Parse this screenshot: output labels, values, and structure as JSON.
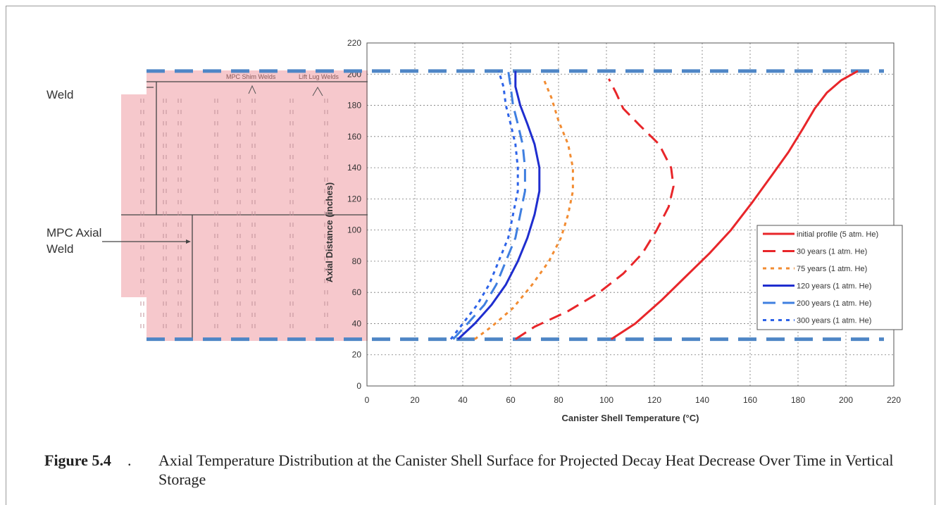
{
  "figure": {
    "number": "Figure 5.4",
    "period": ".",
    "caption": "Axial Temperature Distribution at the Canister Shell Surface for Projected Decay Heat Decrease Over Time in Vertical Storage"
  },
  "diagram": {
    "top_label": "Weld",
    "shim_label": "MPC Shim Welds",
    "lug_label": "Lift Lug Welds",
    "axial_label_line1": "MPC Axial",
    "axial_label_line2": "Weld",
    "fill_color": "#f6c8cc"
  },
  "chart_data": {
    "type": "line",
    "title": "",
    "xlabel": "Canister Shell Temperature (°C)",
    "ylabel": "Axial Distance (inches)",
    "xlim": [
      0,
      220
    ],
    "ylim": [
      0,
      220
    ],
    "xticks": [
      0,
      20,
      40,
      60,
      80,
      100,
      120,
      140,
      160,
      180,
      200,
      220
    ],
    "yticks": [
      0,
      20,
      40,
      60,
      80,
      100,
      120,
      140,
      160,
      180,
      200,
      220
    ],
    "grid": "dotted",
    "legend_position": "right",
    "reference_lines": {
      "y": [
        30,
        202
      ],
      "color": "#4f86c6",
      "style": "dashed"
    },
    "series": [
      {
        "name": "initial profile (5 atm. He)",
        "color": "#e8262a",
        "style": "solid",
        "points": [
          [
            102,
            30
          ],
          [
            112,
            40
          ],
          [
            123,
            55
          ],
          [
            133,
            70
          ],
          [
            143,
            85
          ],
          [
            152,
            100
          ],
          [
            161,
            118
          ],
          [
            169,
            135
          ],
          [
            176,
            150
          ],
          [
            182,
            165
          ],
          [
            187,
            178
          ],
          [
            192,
            188
          ],
          [
            198,
            196
          ],
          [
            205,
            202
          ]
        ]
      },
      {
        "name": "30 years (1 atm. He)",
        "color": "#e8262a",
        "style": "dashed",
        "points": [
          [
            62,
            30
          ],
          [
            70,
            38
          ],
          [
            84,
            48
          ],
          [
            97,
            60
          ],
          [
            107,
            72
          ],
          [
            115,
            85
          ],
          [
            121,
            100
          ],
          [
            126,
            115
          ],
          [
            128,
            128
          ],
          [
            127,
            140
          ],
          [
            122,
            155
          ],
          [
            114,
            167
          ],
          [
            107,
            178
          ],
          [
            104,
            188
          ],
          [
            101,
            197
          ]
        ]
      },
      {
        "name": "75 years (1 atm. He)",
        "color": "#f28c32",
        "style": "dotted",
        "points": [
          [
            45,
            30
          ],
          [
            52,
            38
          ],
          [
            61,
            50
          ],
          [
            69,
            65
          ],
          [
            76,
            80
          ],
          [
            81,
            95
          ],
          [
            84,
            110
          ],
          [
            86,
            125
          ],
          [
            86,
            140
          ],
          [
            84,
            155
          ],
          [
            80,
            170
          ],
          [
            77,
            185
          ],
          [
            74,
            196
          ]
        ]
      },
      {
        "name": "120 years (1 atm. He)",
        "color": "#1f2ecf",
        "style": "solid",
        "points": [
          [
            38,
            30
          ],
          [
            45,
            40
          ],
          [
            52,
            52
          ],
          [
            58,
            65
          ],
          [
            63,
            80
          ],
          [
            67,
            95
          ],
          [
            70,
            110
          ],
          [
            72,
            125
          ],
          [
            72,
            140
          ],
          [
            70,
            155
          ],
          [
            67,
            168
          ],
          [
            64,
            180
          ],
          [
            62,
            192
          ],
          [
            62,
            202
          ]
        ]
      },
      {
        "name": "200 years (1 atm. He)",
        "color": "#3f7fe0",
        "style": "dashed",
        "points": [
          [
            36,
            30
          ],
          [
            42,
            40
          ],
          [
            49,
            52
          ],
          [
            54,
            65
          ],
          [
            58,
            80
          ],
          [
            62,
            95
          ],
          [
            64,
            110
          ],
          [
            66,
            125
          ],
          [
            66,
            140
          ],
          [
            65,
            155
          ],
          [
            63,
            168
          ],
          [
            61,
            180
          ],
          [
            60,
            192
          ],
          [
            59,
            202
          ]
        ]
      },
      {
        "name": "300 years (1 atm. He)",
        "color": "#2d63e8",
        "style": "dotted",
        "points": [
          [
            35,
            30
          ],
          [
            40,
            40
          ],
          [
            46,
            52
          ],
          [
            51,
            65
          ],
          [
            55,
            80
          ],
          [
            59,
            95
          ],
          [
            61,
            110
          ],
          [
            63,
            125
          ],
          [
            63,
            140
          ],
          [
            62,
            155
          ],
          [
            60,
            168
          ],
          [
            58,
            180
          ],
          [
            57,
            192
          ],
          [
            55,
            202
          ]
        ]
      }
    ]
  }
}
